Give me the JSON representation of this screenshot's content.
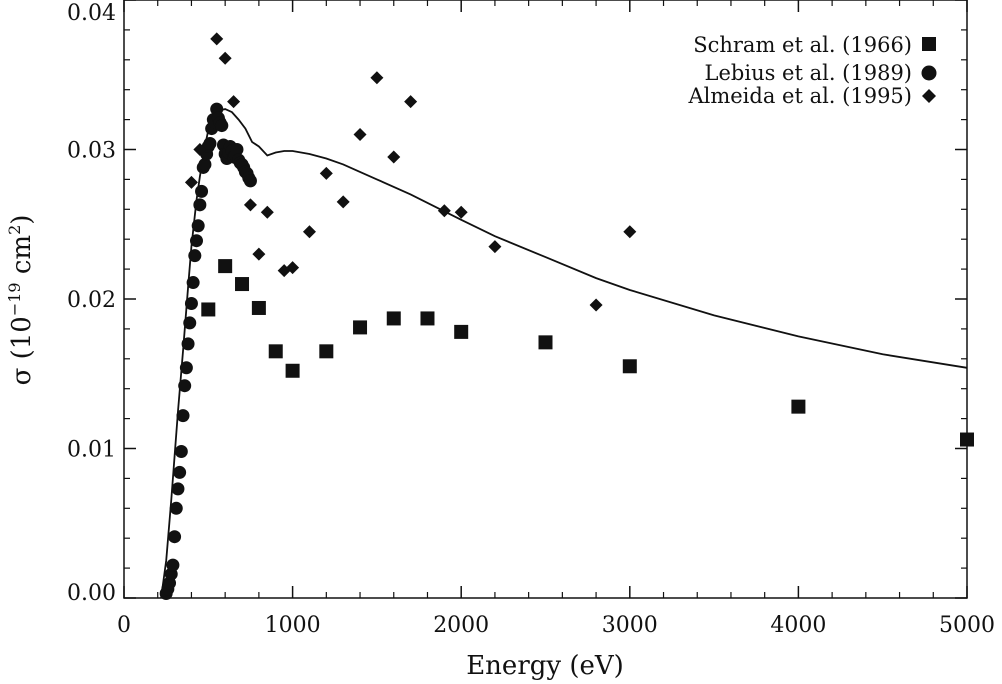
{
  "chart_data": {
    "type": "scatter",
    "xlabel": "Energy (eV)",
    "ylabel_main": "σ  (10",
    "ylabel_exp": "−19",
    "ylabel_unit": " cm",
    "ylabel_unit_exp": "2",
    "ylabel_close": ")",
    "xlim": [
      0,
      5000
    ],
    "ylim": [
      0,
      0.04
    ],
    "x_ticks": [
      0,
      1000,
      2000,
      3000,
      4000,
      5000
    ],
    "x_tick_labels": [
      "0",
      "1000",
      "2000",
      "3000",
      "4000",
      "5000"
    ],
    "y_ticks": [
      0,
      0.01,
      0.02,
      0.03,
      0.04
    ],
    "y_tick_labels": [
      "0.00",
      "0.01",
      "0.02",
      "0.03",
      "0.04"
    ],
    "legend_position": "top-right",
    "series": [
      {
        "name": "Schram et al. (1966)",
        "marker": "square",
        "x": [
          500,
          600,
          700,
          800,
          900,
          1000,
          1200,
          1400,
          1600,
          1800,
          2000,
          2500,
          3000,
          4000,
          5000
        ],
        "y": [
          0.0193,
          0.0222,
          0.021,
          0.0194,
          0.0165,
          0.0152,
          0.0165,
          0.0181,
          0.0187,
          0.0187,
          0.0178,
          0.0171,
          0.0155,
          0.0128,
          0.0106
        ]
      },
      {
        "name": "Lebius et al. (1989)",
        "marker": "circle",
        "x": [
          250,
          260,
          270,
          280,
          290,
          300,
          310,
          320,
          330,
          340,
          350,
          360,
          370,
          380,
          390,
          400,
          410,
          420,
          430,
          440,
          450,
          460,
          470,
          480,
          490,
          500,
          510,
          520,
          530,
          540,
          550,
          560,
          570,
          580,
          590,
          600,
          610,
          620,
          630,
          640,
          650,
          660,
          670,
          680,
          690,
          700,
          710,
          720,
          730,
          740,
          750
        ],
        "y": [
          0.0003,
          0.0006,
          0.001,
          0.0016,
          0.0022,
          0.0041,
          0.006,
          0.0073,
          0.0084,
          0.0098,
          0.0122,
          0.0142,
          0.0154,
          0.017,
          0.0184,
          0.0197,
          0.0211,
          0.0229,
          0.0239,
          0.0249,
          0.0263,
          0.0272,
          0.0288,
          0.029,
          0.0297,
          0.0302,
          0.0304,
          0.0314,
          0.032,
          0.0318,
          0.0327,
          0.0321,
          0.0318,
          0.0316,
          0.0303,
          0.0297,
          0.0294,
          0.0298,
          0.0302,
          0.0299,
          0.0295,
          0.0296,
          0.03,
          0.0293,
          0.0291,
          0.029,
          0.0288,
          0.0285,
          0.0284,
          0.0281,
          0.0279
        ]
      },
      {
        "name": "Almeida et al. (1995)",
        "marker": "diamond",
        "x": [
          400,
          450,
          550,
          600,
          650,
          750,
          800,
          850,
          950,
          1000,
          1100,
          1200,
          1300,
          1400,
          1500,
          1600,
          1700,
          1900,
          2000,
          2200,
          2800,
          3000
        ],
        "y": [
          0.0278,
          0.03,
          0.0374,
          0.0361,
          0.0332,
          0.0263,
          0.023,
          0.0258,
          0.0219,
          0.0221,
          0.0245,
          0.0284,
          0.0265,
          0.031,
          0.0348,
          0.0295,
          0.0332,
          0.0259,
          0.0258,
          0.0235,
          0.0196,
          0.0245
        ]
      },
      {
        "name": "",
        "marker": "line",
        "x": [
          220,
          250,
          280,
          300,
          320,
          350,
          380,
          400,
          430,
          450,
          480,
          500,
          530,
          560,
          600,
          640,
          680,
          720,
          760,
          800,
          850,
          900,
          950,
          1000,
          1100,
          1200,
          1300,
          1400,
          1500,
          1700,
          2000,
          2200,
          2500,
          2800,
          3000,
          3500,
          4000,
          4500,
          5000
        ],
        "y": [
          0.0,
          0.0025,
          0.0065,
          0.0095,
          0.0125,
          0.0165,
          0.0208,
          0.0235,
          0.0266,
          0.0282,
          0.0302,
          0.0313,
          0.0322,
          0.0326,
          0.0327,
          0.0325,
          0.032,
          0.0314,
          0.0305,
          0.0302,
          0.0296,
          0.0298,
          0.0299,
          0.0299,
          0.0297,
          0.0294,
          0.029,
          0.0285,
          0.028,
          0.027,
          0.0253,
          0.0242,
          0.0228,
          0.0214,
          0.0206,
          0.0189,
          0.0175,
          0.0163,
          0.0154
        ]
      }
    ]
  }
}
